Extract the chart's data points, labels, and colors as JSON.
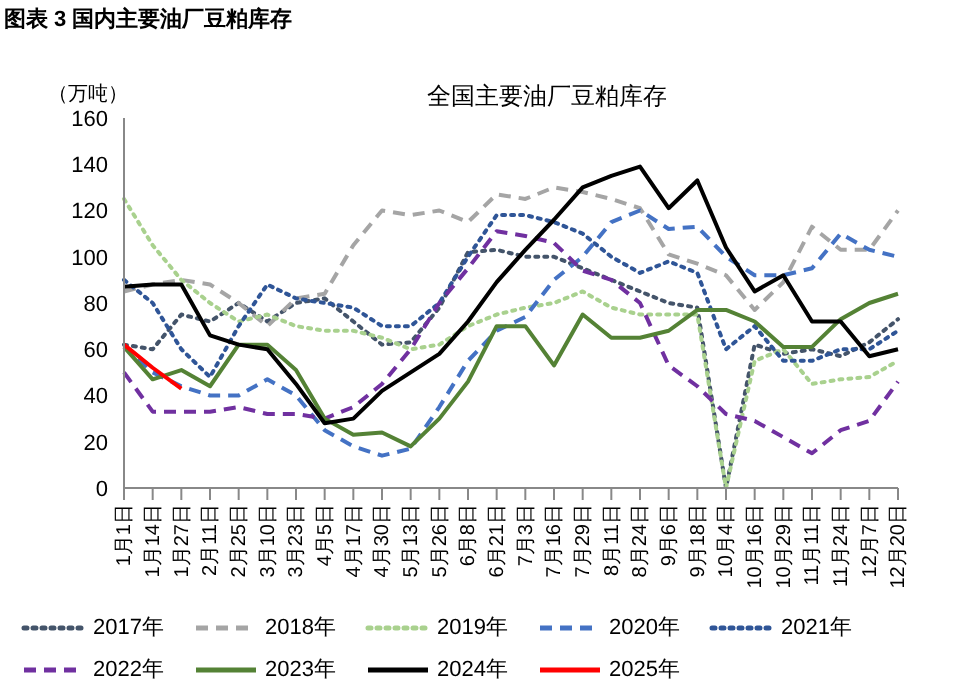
{
  "chart_data": {
    "type": "line",
    "title": "全国主要油厂豆粕库存",
    "ylabel": "（万吨）",
    "annotations": [
      "图表 3 国内主要油厂豆粕库存"
    ],
    "categories": [
      "1月1日",
      "1月14日",
      "1月27日",
      "2月11日",
      "2月25日",
      "3月10日",
      "3月23日",
      "4月5日",
      "4月17日",
      "4月30日",
      "5月13日",
      "5月26日",
      "6月8日",
      "6月21日",
      "7月3日",
      "7月16日",
      "7月29日",
      "8月11日",
      "8月24日",
      "9月6日",
      "9月18日",
      "10月4日",
      "10月16日",
      "10月29日",
      "11月11日",
      "11月24日",
      "12月7日",
      "12月20日"
    ],
    "ylim": [
      0,
      160
    ],
    "yticks": [
      0,
      20,
      40,
      60,
      80,
      100,
      120,
      140,
      160
    ],
    "grid": false,
    "legend": "bottom",
    "marker": "none",
    "series": [
      {
        "name": "2017年",
        "color": "#44546a",
        "line_style": "dotted",
        "values": [
          62,
          60,
          75,
          72,
          80,
          72,
          80,
          82,
          72,
          62,
          63,
          78,
          102,
          103,
          100,
          100,
          95,
          90,
          85,
          80,
          78,
          0,
          62,
          58,
          60,
          57,
          63,
          73
        ]
      },
      {
        "name": "2018年",
        "color": "#a5a5a5",
        "line_style": "dashed",
        "values": [
          85,
          88,
          90,
          88,
          80,
          70,
          82,
          84,
          105,
          120,
          118,
          120,
          115,
          127,
          125,
          130,
          128,
          125,
          121,
          101,
          97,
          92,
          77,
          89,
          113,
          103,
          103,
          120
        ]
      },
      {
        "name": "2019年",
        "color": "#a9d18e",
        "line_style": "dotted",
        "values": [
          125,
          105,
          90,
          80,
          72,
          75,
          70,
          68,
          68,
          65,
          60,
          62,
          70,
          75,
          78,
          80,
          85,
          78,
          75,
          75,
          75,
          0,
          55,
          60,
          45,
          47,
          48,
          55
        ]
      },
      {
        "name": "2020年",
        "color": "#4472c4",
        "line_style": "dashed",
        "values": [
          62,
          50,
          44,
          40,
          40,
          47,
          40,
          25,
          18,
          14,
          17,
          35,
          55,
          68,
          74,
          90,
          100,
          115,
          120,
          112,
          113,
          100,
          92,
          92,
          95,
          110,
          103,
          100
        ]
      },
      {
        "name": "2021年",
        "color": "#2f5597",
        "line_style": "dotted",
        "values": [
          90,
          80,
          60,
          48,
          70,
          88,
          82,
          80,
          78,
          70,
          70,
          80,
          100,
          118,
          118,
          115,
          110,
          100,
          93,
          98,
          93,
          60,
          70,
          55,
          55,
          60,
          60,
          68
        ]
      },
      {
        "name": "2022年",
        "color": "#7030a0",
        "line_style": "dashed",
        "values": [
          50,
          33,
          33,
          33,
          35,
          32,
          32,
          30,
          35,
          45,
          60,
          80,
          95,
          111,
          109,
          106,
          94,
          90,
          80,
          53,
          44,
          32,
          29,
          22,
          15,
          25,
          29,
          46
        ]
      },
      {
        "name": "2023年",
        "color": "#548235",
        "line_style": "solid",
        "values": [
          61,
          47,
          51,
          44,
          62,
          62,
          51,
          30,
          23,
          24,
          18,
          30,
          46,
          70,
          70,
          53,
          75,
          65,
          65,
          68,
          77,
          77,
          72,
          61,
          61,
          73,
          80,
          84
        ]
      },
      {
        "name": "2024年",
        "color": "#000000",
        "line_style": "solid",
        "values": [
          87,
          88,
          88,
          66,
          62,
          60,
          45,
          28,
          30,
          42,
          50,
          58,
          72,
          89,
          103,
          116,
          130,
          135,
          139,
          121,
          133,
          104,
          85,
          92,
          72,
          72,
          57,
          60
        ]
      },
      {
        "name": "2025年",
        "color": "#ff0000",
        "line_style": "solid",
        "values": [
          62,
          52,
          43,
          null,
          null,
          null,
          null,
          null,
          null,
          null,
          null,
          null,
          null,
          null,
          null,
          null,
          null,
          null,
          null,
          null,
          null,
          null,
          null,
          null,
          null,
          null,
          null,
          null
        ]
      }
    ]
  }
}
